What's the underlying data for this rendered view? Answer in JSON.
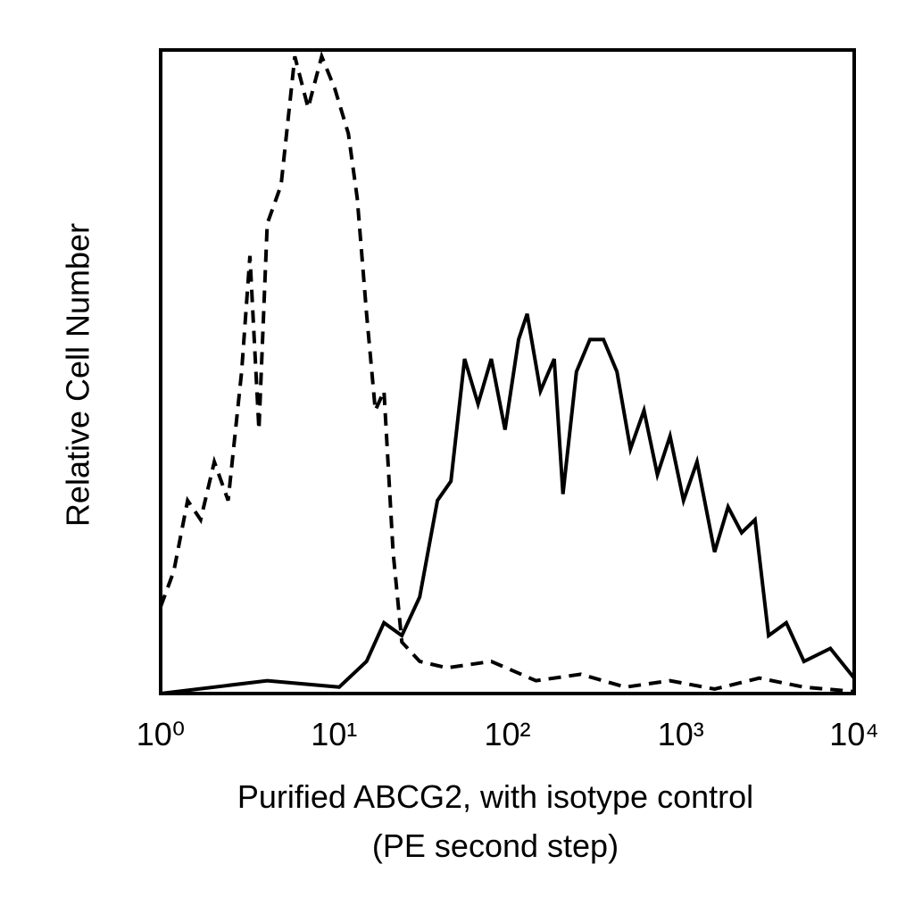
{
  "chart_data": {
    "type": "line",
    "xlabel": [
      "Purified ABCG2, with isotype control",
      "(PE second step)"
    ],
    "ylabel": "Relative Cell Number",
    "xscale": "log",
    "xlim": [
      1,
      10000
    ],
    "ylim": [
      0,
      100
    ],
    "xticks": [
      {
        "value": 1,
        "label": "10⁰"
      },
      {
        "value": 10,
        "label": "10¹"
      },
      {
        "value": 100,
        "label": "10²"
      },
      {
        "value": 1000,
        "label": "10³"
      },
      {
        "value": 10000,
        "label": "10⁴"
      }
    ],
    "series": [
      {
        "name": "isotype control",
        "color": "#000000",
        "line_style": "dashed",
        "x": [
          1,
          1.19,
          1.43,
          1.7,
          2.04,
          2.45,
          2.93,
          3.27,
          3.69,
          4.12,
          4.95,
          5.94,
          7.09,
          8.49,
          10.1,
          12.1,
          13.6,
          15.4,
          17.3,
          19.4,
          21.9,
          24.6,
          31.2,
          44.6,
          80.7,
          146,
          265,
          479,
          867,
          1567,
          2835,
          5128,
          10000
        ],
        "values": [
          13.5,
          19,
          30,
          27,
          36,
          30,
          50,
          68,
          41,
          73,
          79,
          99,
          91,
          99,
          94,
          87,
          77,
          59,
          44,
          47,
          22,
          8,
          5,
          4,
          5,
          2,
          3,
          1,
          2,
          0.7,
          2.4,
          1,
          0.3
        ]
      },
      {
        "name": "Purified ABCG2",
        "color": "#000000",
        "line_style": "solid",
        "x": [
          1,
          4.12,
          10.7,
          15.4,
          19.4,
          24.6,
          31.2,
          39.5,
          47.2,
          56.6,
          67.7,
          80.7,
          96.8,
          116,
          130,
          155,
          186,
          209,
          250,
          299,
          358,
          428,
          512,
          613,
          733,
          867,
          1037,
          1240,
          1567,
          1874,
          2243,
          2681,
          3207,
          4058,
          5128,
          7290,
          10000
        ],
        "values": [
          0,
          2,
          1,
          5,
          11,
          9,
          15,
          30,
          33,
          52,
          45,
          52,
          41,
          55,
          59,
          47,
          52,
          31,
          50,
          55,
          55,
          50,
          38,
          44,
          34,
          40,
          30,
          36,
          22,
          29,
          25,
          27,
          9,
          11,
          5,
          7,
          2.4
        ]
      }
    ]
  }
}
